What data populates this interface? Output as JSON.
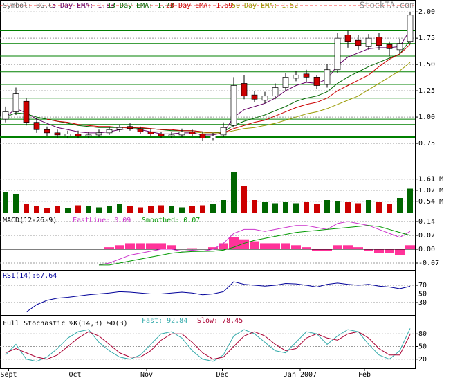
{
  "chart_data": [
    {
      "type": "candlestick",
      "symbol": "Symbol: BG.C",
      "watermark": "StockTA.com",
      "open": [
        0.98,
        1.05,
        1.15,
        0.95,
        0.88,
        0.85,
        0.82,
        0.84,
        0.82,
        0.83,
        0.85,
        0.88,
        0.91,
        0.89,
        0.86,
        0.84,
        0.82,
        0.83,
        0.86,
        0.84,
        0.8,
        0.83,
        0.92,
        1.32,
        1.21,
        1.16,
        1.2,
        1.28,
        1.37,
        1.41,
        1.38,
        1.31,
        1.45,
        1.78,
        1.73,
        1.67,
        1.76,
        1.69,
        1.64,
        1.72
      ],
      "high": [
        1.1,
        1.28,
        1.18,
        0.99,
        0.91,
        0.88,
        0.87,
        0.87,
        0.86,
        0.88,
        0.91,
        0.93,
        0.94,
        0.91,
        0.89,
        0.86,
        0.86,
        0.89,
        0.88,
        0.86,
        0.85,
        0.95,
        1.38,
        1.4,
        1.25,
        1.24,
        1.32,
        1.42,
        1.44,
        1.45,
        1.4,
        1.5,
        1.8,
        1.82,
        1.78,
        1.79,
        1.8,
        1.72,
        1.74,
        2.0
      ],
      "low": [
        0.95,
        1.02,
        0.92,
        0.85,
        0.82,
        0.8,
        0.8,
        0.8,
        0.8,
        0.81,
        0.83,
        0.86,
        0.87,
        0.84,
        0.82,
        0.8,
        0.8,
        0.81,
        0.82,
        0.77,
        0.78,
        0.81,
        0.9,
        1.17,
        1.14,
        1.13,
        1.17,
        1.25,
        1.34,
        1.33,
        1.27,
        1.28,
        1.42,
        1.66,
        1.64,
        1.64,
        1.64,
        1.58,
        1.6,
        1.7
      ],
      "close": [
        1.05,
        1.22,
        0.95,
        0.88,
        0.85,
        0.83,
        0.84,
        0.82,
        0.83,
        0.85,
        0.88,
        0.9,
        0.89,
        0.86,
        0.84,
        0.82,
        0.83,
        0.86,
        0.84,
        0.8,
        0.82,
        0.9,
        1.3,
        1.2,
        1.17,
        1.2,
        1.28,
        1.38,
        1.4,
        1.38,
        1.3,
        1.45,
        1.75,
        1.72,
        1.68,
        1.75,
        1.68,
        1.65,
        1.7,
        1.97
      ],
      "up_color": "#ffffff",
      "down_color": "#cc0000",
      "levels": [
        1.82,
        1.7,
        1.58,
        1.43,
        1.31,
        1.18,
        0.98,
        0.93,
        0.81
      ],
      "level_color": "#008000",
      "resistance": 2.06,
      "resistance_color": "#ff0000",
      "series": [
        {
          "name": "5 Day EMA: 1.83",
          "color": "#660066",
          "values": [
            1.0,
            1.08,
            1.04,
            0.98,
            0.94,
            0.9,
            0.88,
            0.86,
            0.85,
            0.85,
            0.86,
            0.88,
            0.89,
            0.88,
            0.86,
            0.84,
            0.84,
            0.85,
            0.85,
            0.83,
            0.83,
            0.85,
            1.0,
            1.07,
            1.1,
            1.13,
            1.18,
            1.25,
            1.3,
            1.33,
            1.32,
            1.36,
            1.49,
            1.57,
            1.61,
            1.65,
            1.66,
            1.66,
            1.67,
            1.83
          ]
        },
        {
          "name": "13 Day EMA: 1.73",
          "color": "#006600",
          "values": [
            1.0,
            1.04,
            1.03,
            1.0,
            0.98,
            0.96,
            0.94,
            0.92,
            0.91,
            0.9,
            0.9,
            0.9,
            0.9,
            0.89,
            0.89,
            0.88,
            0.87,
            0.87,
            0.87,
            0.86,
            0.85,
            0.86,
            0.92,
            0.96,
            0.99,
            1.02,
            1.06,
            1.1,
            1.15,
            1.18,
            1.2,
            1.24,
            1.32,
            1.38,
            1.43,
            1.48,
            1.52,
            1.56,
            1.6,
            1.73
          ]
        },
        {
          "name": "20 Day EMA: 1.69",
          "color": "#cc0000",
          "values": [
            null,
            null,
            null,
            null,
            0.98,
            0.96,
            0.95,
            0.93,
            0.92,
            0.91,
            0.91,
            0.9,
            0.9,
            0.9,
            0.89,
            0.88,
            0.88,
            0.87,
            0.87,
            0.86,
            0.85,
            0.85,
            0.89,
            0.92,
            0.95,
            0.97,
            1.01,
            1.05,
            1.09,
            1.12,
            1.14,
            1.18,
            1.25,
            1.3,
            1.35,
            1.4,
            1.48,
            1.55,
            1.6,
            1.69
          ]
        },
        {
          "name": "50 Day EMA: 1.52",
          "color": "#999900",
          "values": [
            null,
            null,
            null,
            null,
            null,
            null,
            null,
            null,
            null,
            null,
            null,
            null,
            null,
            null,
            0.86,
            0.86,
            0.86,
            0.86,
            0.86,
            0.85,
            0.85,
            0.85,
            0.87,
            0.89,
            0.9,
            0.92,
            0.94,
            0.97,
            1.0,
            1.03,
            1.05,
            1.08,
            1.12,
            1.16,
            1.2,
            1.26,
            1.32,
            1.38,
            1.44,
            1.52
          ]
        }
      ],
      "ylim": [
        0.5,
        2.1
      ],
      "yticks": [
        {
          "value": 2,
          "label": "2.00"
        },
        {
          "value": 1.75,
          "label": "1.75"
        },
        {
          "value": 1.5,
          "label": "1.50"
        },
        {
          "value": 1.25,
          "label": "1.25"
        },
        {
          "value": 1,
          "label": "1.00"
        },
        {
          "value": 0.75,
          "label": "0.75"
        }
      ]
    },
    {
      "type": "volume",
      "up_color": "#006600",
      "down_color": "#cc0000",
      "values": [
        1.0,
        0.9,
        0.4,
        0.3,
        0.2,
        0.3,
        0.2,
        0.35,
        0.3,
        0.25,
        0.3,
        0.4,
        0.3,
        0.25,
        0.3,
        0.35,
        0.3,
        0.25,
        0.3,
        0.35,
        0.4,
        0.6,
        1.95,
        1.3,
        0.6,
        0.5,
        0.45,
        0.5,
        0.45,
        0.5,
        0.4,
        0.6,
        0.55,
        0.5,
        0.45,
        0.6,
        0.5,
        0.4,
        0.7,
        1.15
      ],
      "ylim": [
        0,
        2.0
      ],
      "yticks": [
        {
          "value": 1.61,
          "label": "1.61 M"
        },
        {
          "value": 1.07,
          "label": "1.07 M"
        },
        {
          "value": 0.54,
          "label": "0.54 M"
        }
      ]
    },
    {
      "type": "macd",
      "title": "MACD(12-26-9)",
      "bar_color": "#ff3399",
      "bars": [
        null,
        null,
        null,
        null,
        null,
        null,
        null,
        null,
        null,
        0,
        0.01,
        0.02,
        0.03,
        0.03,
        0.03,
        0.03,
        0.02,
        0.0,
        0.005,
        0.0,
        0.01,
        0.03,
        0.06,
        0.05,
        0.04,
        0.03,
        0.03,
        0.03,
        0.02,
        0.01,
        -0.01,
        -0.01,
        0.02,
        0.02,
        0.01,
        -0.01,
        -0.02,
        -0.02,
        -0.03,
        0.02
      ],
      "series": [
        {
          "name": "FastLine: 0.09",
          "color": "#cc33cc",
          "values": [
            null,
            null,
            null,
            null,
            null,
            null,
            null,
            null,
            null,
            -0.08,
            -0.07,
            -0.05,
            -0.03,
            -0.02,
            -0.01,
            0,
            0,
            -0.01,
            -0.005,
            -0.01,
            0,
            0.03,
            0.08,
            0.1,
            0.1,
            0.09,
            0.1,
            0.11,
            0.12,
            0.12,
            0.11,
            0.1,
            0.13,
            0.14,
            0.13,
            0.12,
            0.1,
            0.08,
            0.06,
            0.09
          ]
        },
        {
          "name": "Smoothed: 0.07",
          "color": "#009900",
          "values": [
            null,
            null,
            null,
            null,
            null,
            null,
            null,
            null,
            null,
            -0.08,
            -0.08,
            -0.07,
            -0.06,
            -0.05,
            -0.04,
            -0.03,
            -0.02,
            -0.015,
            -0.012,
            -0.011,
            -0.01,
            -0.005,
            0.01,
            0.03,
            0.045,
            0.055,
            0.065,
            0.075,
            0.085,
            0.09,
            0.095,
            0.1,
            0.105,
            0.11,
            0.115,
            0.12,
            0.115,
            0.1,
            0.085,
            0.07
          ]
        }
      ],
      "ylim": [
        -0.098,
        0.168
      ],
      "yticks": [
        {
          "value": 0.14,
          "label": "0.14"
        },
        {
          "value": 0.07,
          "label": "0.07"
        },
        {
          "value": 0,
          "label": "0.00"
        },
        {
          "value": -0.07,
          "label": "-0.07"
        }
      ]
    },
    {
      "type": "line",
      "title": "RSI(14):67.64",
      "series": [
        {
          "color": "#000099",
          "values": [
            null,
            null,
            8,
            25,
            35,
            40,
            42,
            45,
            48,
            50,
            52,
            55,
            54,
            52,
            50,
            50,
            52,
            54,
            52,
            48,
            50,
            55,
            78,
            72,
            70,
            68,
            70,
            74,
            73,
            70,
            66,
            72,
            75,
            72,
            70,
            72,
            68,
            66,
            62,
            67.64
          ]
        }
      ],
      "ylim": [
        6,
        102
      ],
      "yticks": [
        70,
        50,
        30
      ]
    },
    {
      "type": "line",
      "title": "Full Stochastic %K(14,3) %D(3)",
      "series": [
        {
          "name": "Fast: 92.84",
          "color": "#33aaaa",
          "values": [
            30,
            55,
            20,
            15,
            25,
            45,
            70,
            85,
            90,
            60,
            40,
            25,
            20,
            30,
            55,
            80,
            85,
            70,
            40,
            20,
            15,
            30,
            75,
            90,
            80,
            60,
            40,
            35,
            60,
            85,
            80,
            55,
            75,
            90,
            85,
            55,
            30,
            20,
            40,
            92.84
          ]
        },
        {
          "name": "Slow: 78.45",
          "color": "#aa0033",
          "values": [
            35,
            45,
            35,
            25,
            20,
            30,
            50,
            70,
            85,
            75,
            55,
            35,
            25,
            25,
            40,
            65,
            80,
            80,
            60,
            35,
            20,
            25,
            50,
            75,
            85,
            75,
            55,
            40,
            45,
            70,
            80,
            70,
            65,
            80,
            85,
            70,
            45,
            30,
            30,
            78.45
          ]
        }
      ],
      "ylim": [
        0,
        100
      ],
      "yticks": [
        80,
        50,
        20
      ],
      "xticks": [
        {
          "value": 0.3,
          "label": "Sept"
        },
        {
          "value": 6.7,
          "label": "Oct"
        },
        {
          "value": 13.6,
          "label": "Nov"
        },
        {
          "value": 20.9,
          "label": "Dec"
        },
        {
          "value": 28.4,
          "label": "Jan 2007"
        },
        {
          "value": 34.6,
          "label": "Feb"
        }
      ]
    }
  ]
}
